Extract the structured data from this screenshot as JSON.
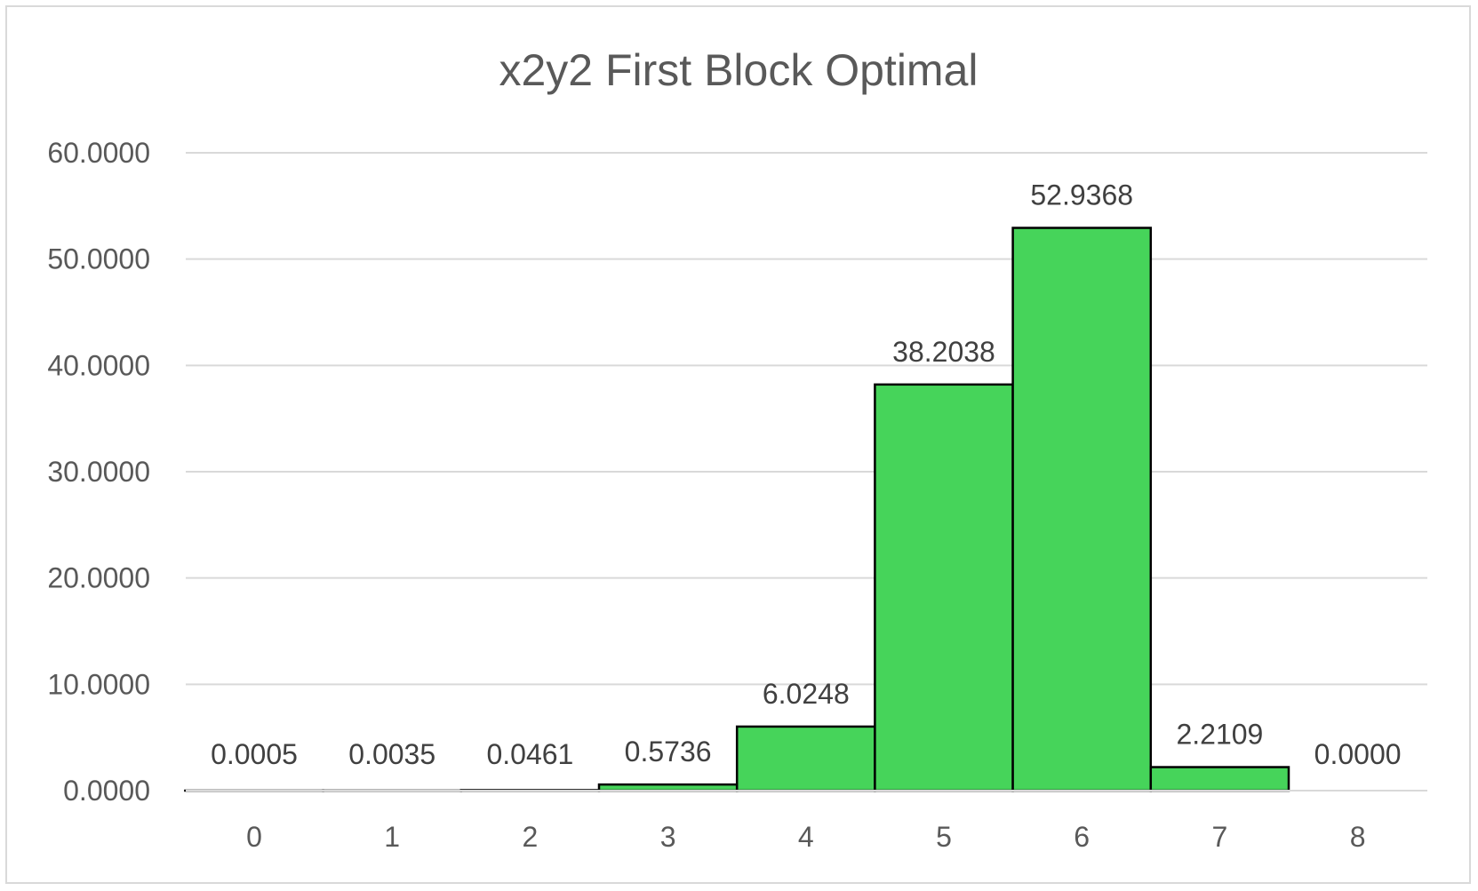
{
  "chart_data": {
    "type": "bar",
    "title": "x2y2 First Block Optimal",
    "xlabel": "",
    "ylabel": "",
    "categories": [
      "0",
      "1",
      "2",
      "3",
      "4",
      "5",
      "6",
      "7",
      "8"
    ],
    "values": [
      0.0005,
      0.0035,
      0.0461,
      0.5736,
      6.0248,
      38.2038,
      52.9368,
      2.2109,
      0.0
    ],
    "data_labels": [
      "0.0005",
      "0.0035",
      "0.0461",
      "0.5736",
      "6.0248",
      "38.2038",
      "52.9368",
      "2.2109",
      "0.0000"
    ],
    "y_tick_labels": [
      "0.0000",
      "10.0000",
      "20.0000",
      "30.0000",
      "40.0000",
      "50.0000",
      "60.0000"
    ],
    "y_ticks": [
      0,
      10,
      20,
      30,
      40,
      50,
      60
    ],
    "ylim": [
      0,
      60
    ],
    "grid": true,
    "legend": "none",
    "bar_color": "#46d45a",
    "bar_outline_color": "#000000",
    "gridline_color": "#d9d9d9"
  }
}
